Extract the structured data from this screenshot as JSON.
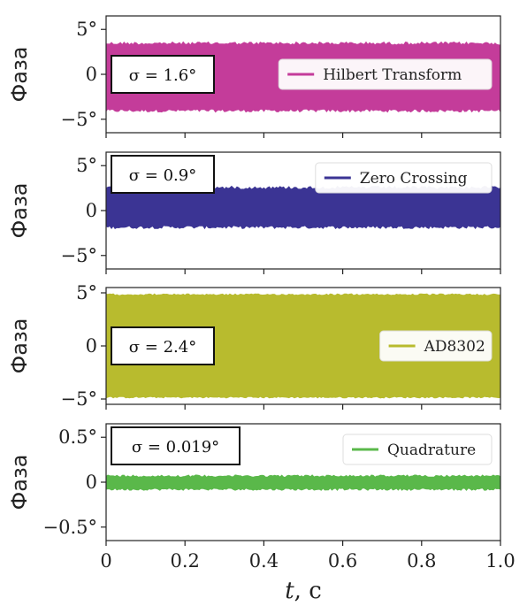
{
  "chart_data": {
    "type": "line",
    "xlabel_var": "t",
    "xlabel_unit": ", c",
    "xlim": [
      0,
      1.0
    ],
    "xticks": [
      0,
      0.2,
      0.4,
      0.6,
      0.8,
      1.0
    ],
    "xtick_labels": [
      "0",
      "0.2",
      "0.4",
      "0.6",
      "0.8",
      "1.0"
    ],
    "panels": [
      {
        "name": "Hilbert Transform",
        "color": "#c43c9a",
        "ylabel": "Фаза",
        "ylim": [
          -6.5,
          6.5
        ],
        "yticks": [
          -5,
          0,
          5
        ],
        "ytick_labels": [
          "−5°",
          "0",
          "5°"
        ],
        "band": [
          -4.2,
          3.6
        ],
        "jitter": 0.35,
        "sigma_label": "σ = 1.6°",
        "legend_position": "center-right"
      },
      {
        "name": "Zero Crossing",
        "color": "#3b3494",
        "ylabel": "Фаза",
        "ylim": [
          -6.5,
          6.5
        ],
        "yticks": [
          -5,
          0,
          5
        ],
        "ytick_labels": [
          "−5°",
          "0",
          "5°"
        ],
        "band": [
          -2.0,
          2.7
        ],
        "jitter": 0.35,
        "sigma_label": "σ = 0.9°",
        "legend_position": "upper-right"
      },
      {
        "name": "AD8302",
        "color": "#b8bb2e",
        "ylabel": "Фаза",
        "ylim": [
          -5.5,
          5.5
        ],
        "yticks": [
          -5,
          0,
          5
        ],
        "ytick_labels": [
          "−5°",
          "0",
          "5°"
        ],
        "band": [
          -4.9,
          4.9
        ],
        "jitter": 0.15,
        "sigma_label": "σ = 2.4°",
        "legend_position": "center-right"
      },
      {
        "name": "Quadrature",
        "color": "#5ab84a",
        "ylabel": "Фаза",
        "ylim": [
          -0.65,
          0.65
        ],
        "yticks": [
          -0.5,
          0,
          0.5
        ],
        "ytick_labels": [
          "−0.5°",
          "0",
          "0.5°"
        ],
        "band": [
          -0.09,
          0.08
        ],
        "jitter": 0.025,
        "sigma_label": "σ = 0.019°",
        "legend_position": "upper-right"
      }
    ]
  }
}
